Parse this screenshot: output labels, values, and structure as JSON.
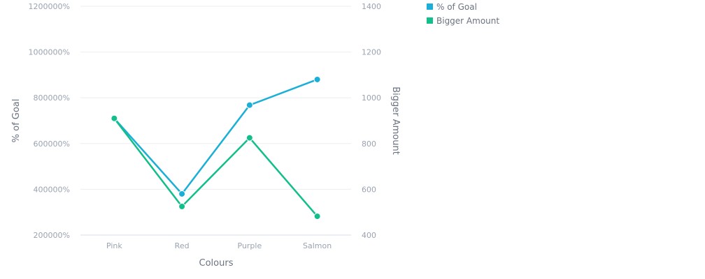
{
  "chart_data": {
    "type": "line",
    "categories": [
      "Pink",
      "Red",
      "Purple",
      "Salmon"
    ],
    "xlabel": "Colours",
    "series": [
      {
        "name": "% of Goal",
        "axis": "left",
        "values": [
          710000,
          380000,
          768000,
          880000
        ],
        "color": "#1aafd6"
      },
      {
        "name": "Bigger Amount",
        "axis": "right",
        "values": [
          910,
          525,
          825,
          482
        ],
        "color": "#12bf8a"
      }
    ],
    "y_left": {
      "label": "% of Goal",
      "ylim": [
        200000,
        1200000
      ],
      "ticks": [
        200000,
        400000,
        600000,
        800000,
        1000000,
        1200000
      ],
      "tick_labels": [
        "200000%",
        "400000%",
        "600000%",
        "800000%",
        "1000000%",
        "1200000%"
      ]
    },
    "y_right": {
      "label": "Bigger Amount",
      "ylim": [
        400,
        1400
      ],
      "ticks": [
        400,
        600,
        800,
        1000,
        1200,
        1400
      ],
      "tick_labels": [
        "400",
        "600",
        "800",
        "1000",
        "1200",
        "1400"
      ]
    },
    "legend_position": "top-right",
    "grid": true
  }
}
